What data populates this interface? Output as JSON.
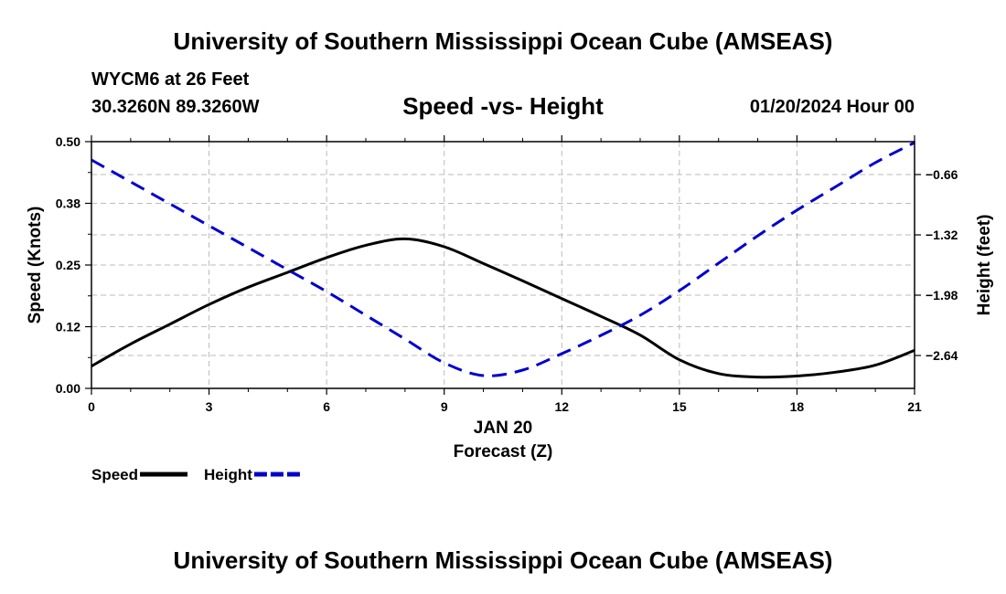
{
  "header": {
    "title": "University of Southern Mississippi Ocean Cube (AMSEAS)",
    "station": "WYCM6 at 26 Feet",
    "coords": "30.3260N  89.3260W",
    "subtitle": "Speed -vs- Height",
    "datetime": "01/20/2024 Hour 00"
  },
  "footer": {
    "title": "University of Southern Mississippi Ocean Cube (AMSEAS)"
  },
  "colors": {
    "speed": "#000000",
    "height": "#0000cc",
    "grid": "#bbbbbb"
  },
  "chart_data": {
    "type": "line",
    "title": "Speed -vs- Height",
    "xlabel": "Forecast (Z)",
    "xsublabel": "JAN 20",
    "ylabel": "Speed (Knots)",
    "y2label": "Height (feet)",
    "xlim": [
      0,
      21
    ],
    "ylim": [
      0,
      0.5
    ],
    "y2lim": [
      -3.0,
      -0.3
    ],
    "xticks": [
      0,
      3,
      6,
      9,
      12,
      15,
      18,
      21
    ],
    "xtick_labels": [
      "0",
      "3",
      "6",
      "9",
      "12",
      "15",
      "18",
      "21"
    ],
    "yticks": [
      0,
      0.125,
      0.25,
      0.375,
      0.5
    ],
    "ytick_labels": [
      "0.00",
      "0.12",
      "0.25",
      "0.38",
      "0.50"
    ],
    "y2ticks": [
      -2.64,
      -1.98,
      -1.32,
      -0.66
    ],
    "y2tick_labels": [
      "-2.64",
      "-1.98",
      "-1.32",
      "-0.66"
    ],
    "grid": true,
    "series": [
      {
        "name": "Speed",
        "axis": "left",
        "style": "solid",
        "x": [
          0,
          1,
          2,
          3,
          4,
          5,
          6,
          7,
          8,
          9,
          10,
          11,
          12,
          13,
          14,
          15,
          16,
          17,
          18,
          19,
          20,
          21
        ],
        "values": [
          0.045,
          0.09,
          0.13,
          0.17,
          0.205,
          0.235,
          0.265,
          0.29,
          0.303,
          0.287,
          0.253,
          0.218,
          0.182,
          0.146,
          0.108,
          0.058,
          0.03,
          0.023,
          0.025,
          0.033,
          0.047,
          0.077
        ]
      },
      {
        "name": "Height",
        "axis": "right",
        "style": "dashed",
        "x": [
          0,
          1,
          2,
          3,
          4,
          5,
          6,
          7,
          8,
          9,
          10,
          11,
          12,
          13,
          14,
          15,
          16,
          17,
          18,
          19,
          20,
          21
        ],
        "values": [
          -0.5,
          -0.74,
          -0.98,
          -1.22,
          -1.46,
          -1.7,
          -1.94,
          -2.2,
          -2.46,
          -2.72,
          -2.86,
          -2.8,
          -2.62,
          -2.42,
          -2.2,
          -1.93,
          -1.63,
          -1.33,
          -1.05,
          -0.79,
          -0.53,
          -0.31
        ]
      }
    ],
    "legend": [
      {
        "label": "Speed",
        "style": "solid"
      },
      {
        "label": "Height",
        "style": "dashed"
      }
    ]
  }
}
